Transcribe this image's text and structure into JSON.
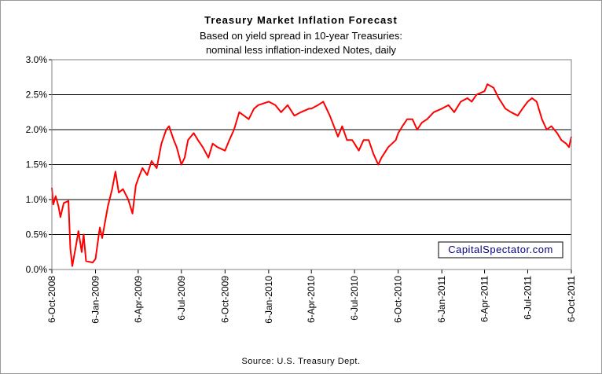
{
  "chart_data": {
    "type": "line",
    "title": "Treasury Market Inflation Forecast",
    "subtitle": [
      "Based on yield spread in 10-year Treasuries:",
      "nominal less inflation-indexed Notes, daily"
    ],
    "annotation": "CapitalSpectator.com",
    "source": "Source: U.S. Treasury Dept.",
    "xlim": [
      "2008-10-06",
      "2011-10-06"
    ],
    "xticks": [
      {
        "value": "2008-10-06",
        "label": "6-Oct-2008"
      },
      {
        "value": "2009-01-06",
        "label": "6-Jan-2009"
      },
      {
        "value": "2009-04-06",
        "label": "6-Apr-2009"
      },
      {
        "value": "2009-07-06",
        "label": "6-Jul-2009"
      },
      {
        "value": "2009-10-06",
        "label": "6-Oct-2009"
      },
      {
        "value": "2010-01-06",
        "label": "6-Jan-2010"
      },
      {
        "value": "2010-04-06",
        "label": "6-Apr-2010"
      },
      {
        "value": "2010-07-06",
        "label": "6-Jul-2010"
      },
      {
        "value": "2010-10-06",
        "label": "6-Oct-2010"
      },
      {
        "value": "2011-01-06",
        "label": "6-Jan-2011"
      },
      {
        "value": "2011-04-06",
        "label": "6-Apr-2011"
      },
      {
        "value": "2011-07-06",
        "label": "6-Jul-2011"
      },
      {
        "value": "2011-10-06",
        "label": "6-Oct-2011"
      }
    ],
    "ylim": [
      0,
      3
    ],
    "yticks": [
      {
        "value": 0,
        "label": "0.0%"
      },
      {
        "value": 0.5,
        "label": "0.5%"
      },
      {
        "value": 1,
        "label": "1.0%"
      },
      {
        "value": 1.5,
        "label": "1.5%"
      },
      {
        "value": 2,
        "label": "2.0%"
      },
      {
        "value": 2.5,
        "label": "2.5%"
      },
      {
        "value": 3,
        "label": "3.0%"
      }
    ],
    "grid": true,
    "x": [
      "2008-10-06",
      "2008-10-09",
      "2008-10-14",
      "2008-10-20",
      "2008-10-24",
      "2008-10-31",
      "2008-11-10",
      "2008-11-14",
      "2008-11-18",
      "2008-11-26",
      "2008-12-01",
      "2008-12-08",
      "2008-12-12",
      "2008-12-17",
      "2008-12-31",
      "2009-01-06",
      "2009-01-15",
      "2009-01-20",
      "2009-02-01",
      "2009-02-10",
      "2009-02-17",
      "2009-02-24",
      "2009-03-05",
      "2009-03-16",
      "2009-03-25",
      "2009-04-01",
      "2009-04-06",
      "2009-04-15",
      "2009-04-25",
      "2009-05-04",
      "2009-05-15",
      "2009-05-25",
      "2009-06-04",
      "2009-06-10",
      "2009-06-20",
      "2009-06-26",
      "2009-07-06",
      "2009-07-13",
      "2009-07-20",
      "2009-08-01",
      "2009-08-10",
      "2009-08-20",
      "2009-09-01",
      "2009-09-10",
      "2009-09-20",
      "2009-10-06",
      "2009-10-15",
      "2009-10-25",
      "2009-11-05",
      "2009-11-15",
      "2009-11-25",
      "2009-12-06",
      "2009-12-15",
      "2010-01-06",
      "2010-01-20",
      "2010-02-01",
      "2010-02-15",
      "2010-03-01",
      "2010-03-15",
      "2010-04-01",
      "2010-04-06",
      "2010-04-20",
      "2010-05-01",
      "2010-05-15",
      "2010-06-01",
      "2010-06-10",
      "2010-06-20",
      "2010-07-01",
      "2010-07-06",
      "2010-07-15",
      "2010-07-25",
      "2010-08-05",
      "2010-08-15",
      "2010-08-25",
      "2010-09-01",
      "2010-09-15",
      "2010-10-01",
      "2010-10-06",
      "2010-10-15",
      "2010-10-25",
      "2010-11-05",
      "2010-11-15",
      "2010-11-25",
      "2010-12-06",
      "2010-12-20",
      "2011-01-06",
      "2011-01-20",
      "2011-02-01",
      "2011-02-15",
      "2011-03-01",
      "2011-03-10",
      "2011-03-20",
      "2011-04-06",
      "2011-04-12",
      "2011-04-25",
      "2011-05-06",
      "2011-05-20",
      "2011-06-01",
      "2011-06-15",
      "2011-06-25",
      "2011-07-06",
      "2011-07-15",
      "2011-07-25",
      "2011-08-05",
      "2011-08-15",
      "2011-08-25",
      "2011-09-06",
      "2011-09-15",
      "2011-09-25",
      "2011-10-01",
      "2011-10-06"
    ],
    "series": [
      {
        "name": "Inflation forecast",
        "color": "#ff0000",
        "values": [
          1.17,
          0.93,
          1.05,
          0.9,
          0.75,
          0.95,
          0.98,
          0.3,
          0.05,
          0.35,
          0.55,
          0.25,
          0.5,
          0.12,
          0.1,
          0.15,
          0.6,
          0.45,
          0.9,
          1.15,
          1.4,
          1.1,
          1.15,
          1.0,
          0.8,
          1.2,
          1.3,
          1.45,
          1.35,
          1.55,
          1.45,
          1.8,
          2.0,
          2.05,
          1.85,
          1.75,
          1.5,
          1.6,
          1.85,
          1.95,
          1.85,
          1.75,
          1.6,
          1.8,
          1.75,
          1.7,
          1.85,
          2.0,
          2.25,
          2.2,
          2.15,
          2.3,
          2.35,
          2.4,
          2.35,
          2.25,
          2.35,
          2.2,
          2.25,
          2.3,
          2.3,
          2.35,
          2.4,
          2.2,
          1.9,
          2.05,
          1.85,
          1.85,
          1.8,
          1.7,
          1.85,
          1.85,
          1.65,
          1.5,
          1.6,
          1.75,
          1.85,
          1.95,
          2.05,
          2.15,
          2.15,
          2.0,
          2.1,
          2.15,
          2.25,
          2.3,
          2.35,
          2.25,
          2.4,
          2.45,
          2.4,
          2.5,
          2.55,
          2.65,
          2.6,
          2.45,
          2.3,
          2.25,
          2.2,
          2.3,
          2.4,
          2.45,
          2.4,
          2.15,
          2.0,
          2.05,
          1.95,
          1.85,
          1.8,
          1.75,
          1.9
        ]
      }
    ]
  }
}
